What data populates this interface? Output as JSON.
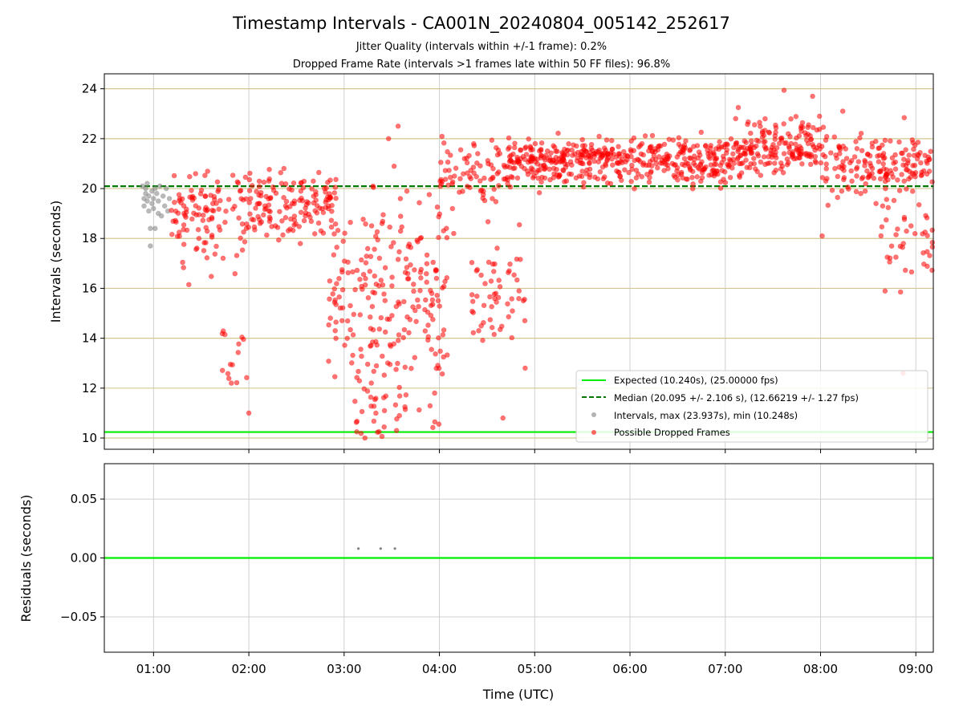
{
  "figure": {
    "title": "Timestamp Intervals - CA001N_20240804_005142_252617",
    "subtitle_1": "Jitter Quality (intervals within +/-1 frame): 0.2%",
    "subtitle_2": "Dropped Frame Rate (intervals >1 frames late within 50 FF files): 96.8%"
  },
  "chart_data": [
    {
      "type": "scatter",
      "xlabel": "",
      "ylabel": "Intervals (seconds)",
      "x_unit": "time (UTC)",
      "xlim": [
        "00:29",
        "09:11"
      ],
      "ylim": [
        9.55,
        24.6
      ],
      "yticks": [
        10,
        12,
        14,
        16,
        18,
        20,
        22,
        24
      ],
      "xticks": [
        "01:00",
        "02:00",
        "03:00",
        "04:00",
        "05:00",
        "06:00",
        "07:00",
        "08:00",
        "09:00"
      ],
      "grid": true,
      "legend_position": "lower-right",
      "reference_lines": [
        {
          "name": "Expected (10.240s), (25.00000 fps)",
          "y": 10.24,
          "color": "#00ee00",
          "style": "solid"
        },
        {
          "name": "Median (20.095 +/- 2.106 s), (12.66219 +/- 1.27 fps)",
          "y": 20.095,
          "color": "#007a00",
          "style": "dashed"
        }
      ],
      "series": [
        {
          "name": "Intervals, max (23.937s), min (10.248s)",
          "color": "#808080",
          "points": [
            [
              "00:53",
              20.1
            ],
            [
              "00:54",
              19.6
            ],
            [
              "00:54",
              19.3
            ],
            [
              "00:55",
              20.0
            ],
            [
              "00:55",
              19.8
            ],
            [
              "00:56",
              19.5
            ],
            [
              "00:56",
              20.2
            ],
            [
              "00:57",
              19.1
            ],
            [
              "00:57",
              19.7
            ],
            [
              "00:58",
              18.4
            ],
            [
              "00:58",
              17.7
            ],
            [
              "00:59",
              19.4
            ],
            [
              "00:59",
              19.9
            ],
            [
              "01:00",
              19.2
            ],
            [
              "01:00",
              19.6
            ],
            [
              "01:01",
              18.4
            ],
            [
              "01:01",
              20.0
            ],
            [
              "01:02",
              19.8
            ],
            [
              "01:03",
              19.0
            ],
            [
              "01:03",
              19.5
            ],
            [
              "01:04",
              20.1
            ],
            [
              "01:05",
              18.9
            ],
            [
              "01:06",
              19.7
            ],
            [
              "01:07",
              19.3
            ],
            [
              "01:08",
              20.0
            ],
            [
              "01:09",
              19.1
            ],
            [
              "01:10",
              19.6
            ]
          ]
        },
        {
          "name": "Possible Dropped Frames",
          "color": "#ff0000",
          "clusters": [
            {
              "from": "01:10",
              "to": "02:55",
              "center": 19.3,
              "spread": 0.9,
              "count": 230
            },
            {
              "from": "01:15",
              "to": "02:00",
              "center": 17.8,
              "spread": 1.0,
              "count": 25
            },
            {
              "from": "01:42",
              "to": "02:00",
              "center": 14.0,
              "spread": 2.0,
              "count": 14
            },
            {
              "from": "02:50",
              "to": "04:05",
              "center": 15.4,
              "spread": 3.0,
              "count": 230
            },
            {
              "from": "03:05",
              "to": "03:40",
              "center": 11.2,
              "spread": 0.8,
              "count": 25
            },
            {
              "from": "04:00",
              "to": "04:40",
              "center": 20.8,
              "spread": 0.9,
              "count": 70
            },
            {
              "from": "04:20",
              "to": "04:55",
              "center": 15.8,
              "spread": 1.6,
              "count": 55
            },
            {
              "from": "04:40",
              "to": "07:05",
              "center": 21.1,
              "spread": 0.65,
              "count": 470
            },
            {
              "from": "07:05",
              "to": "08:00",
              "center": 21.7,
              "spread": 0.75,
              "count": 180
            },
            {
              "from": "08:00",
              "to": "09:11",
              "center": 20.9,
              "spread": 0.9,
              "count": 170
            },
            {
              "from": "08:35",
              "to": "09:11",
              "center": 17.8,
              "spread": 1.4,
              "count": 40
            }
          ],
          "points": [
            [
              "07:37",
              23.94
            ],
            [
              "07:55",
              23.7
            ],
            [
              "08:01",
              18.1
            ],
            [
              "08:14",
              23.1
            ],
            [
              "08:52",
              12.6
            ],
            [
              "03:08",
              10.25
            ],
            [
              "03:22",
              10.25
            ],
            [
              "03:33",
              10.3
            ],
            [
              "04:40",
              10.8
            ],
            [
              "04:54",
              12.8
            ],
            [
              "04:09",
              18.2
            ],
            [
              "04:43",
              20.2
            ],
            [
              "03:57",
              11.8
            ],
            [
              "02:00",
              11.0
            ],
            [
              "01:49",
              12.2
            ],
            [
              "03:34",
              22.5
            ],
            [
              "03:28",
              22.0
            ]
          ]
        }
      ]
    },
    {
      "type": "scatter",
      "xlabel": "Time (UTC)",
      "ylabel": "Residuals (seconds)",
      "ylim": [
        -0.08,
        0.08
      ],
      "yticks": [
        0.05,
        0.0,
        -0.05
      ],
      "ytick_labels": [
        "0.05",
        "0.00",
        "−0.05"
      ],
      "grid": true,
      "reference_lines": [
        {
          "y": 0.0,
          "color": "#00ee00",
          "style": "solid"
        }
      ],
      "series": [
        {
          "color": "#808080",
          "points": [
            [
              "03:09",
              0.008
            ],
            [
              "03:23",
              0.008
            ],
            [
              "03:32",
              0.008
            ]
          ]
        }
      ]
    }
  ]
}
